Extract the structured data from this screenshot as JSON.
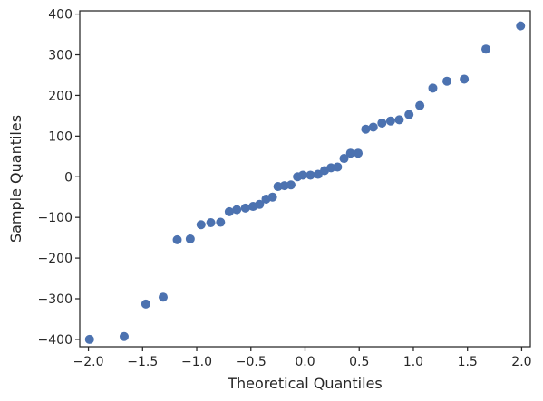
{
  "chart_data": {
    "type": "scatter",
    "title": "",
    "xlabel": "Theoretical Quantiles",
    "ylabel": "Sample Quantiles",
    "xlim": [
      -2.08,
      2.08
    ],
    "ylim": [
      -418,
      408
    ],
    "xticks": [
      -2.0,
      -1.5,
      -1.0,
      -0.5,
      0.0,
      0.5,
      1.0,
      1.5,
      2.0
    ],
    "xtick_labels": [
      "−2.0",
      "−1.5",
      "−1.0",
      "−0.5",
      "0.0",
      "0.5",
      "1.0",
      "1.5",
      "2.0"
    ],
    "yticks": [
      -400,
      -300,
      -200,
      -100,
      0,
      100,
      200,
      300,
      400
    ],
    "ytick_labels": [
      "−400",
      "−300",
      "−200",
      "−100",
      "0",
      "100",
      "200",
      "300",
      "400"
    ],
    "grid": false,
    "legend": "none",
    "marker_color": "#4c72b0",
    "points": [
      {
        "x": -1.99,
        "y": -400
      },
      {
        "x": -1.67,
        "y": -393
      },
      {
        "x": -1.47,
        "y": -313
      },
      {
        "x": -1.31,
        "y": -296
      },
      {
        "x": -1.18,
        "y": -155
      },
      {
        "x": -1.06,
        "y": -153
      },
      {
        "x": -0.96,
        "y": -118
      },
      {
        "x": -0.87,
        "y": -113
      },
      {
        "x": -0.78,
        "y": -112
      },
      {
        "x": -0.7,
        "y": -86
      },
      {
        "x": -0.63,
        "y": -81
      },
      {
        "x": -0.55,
        "y": -77
      },
      {
        "x": -0.48,
        "y": -73
      },
      {
        "x": -0.42,
        "y": -68
      },
      {
        "x": -0.36,
        "y": -55
      },
      {
        "x": -0.3,
        "y": -50
      },
      {
        "x": -0.25,
        "y": -24
      },
      {
        "x": -0.19,
        "y": -22
      },
      {
        "x": -0.13,
        "y": -20
      },
      {
        "x": -0.07,
        "y": 0
      },
      {
        "x": -0.02,
        "y": 4
      },
      {
        "x": 0.05,
        "y": 4
      },
      {
        "x": 0.12,
        "y": 6
      },
      {
        "x": 0.18,
        "y": 15
      },
      {
        "x": 0.24,
        "y": 22
      },
      {
        "x": 0.3,
        "y": 24
      },
      {
        "x": 0.36,
        "y": 45
      },
      {
        "x": 0.42,
        "y": 58
      },
      {
        "x": 0.49,
        "y": 58
      },
      {
        "x": 0.56,
        "y": 117
      },
      {
        "x": 0.63,
        "y": 122
      },
      {
        "x": 0.71,
        "y": 132
      },
      {
        "x": 0.79,
        "y": 137
      },
      {
        "x": 0.87,
        "y": 140
      },
      {
        "x": 0.96,
        "y": 153
      },
      {
        "x": 1.06,
        "y": 175
      },
      {
        "x": 1.18,
        "y": 218
      },
      {
        "x": 1.31,
        "y": 235
      },
      {
        "x": 1.47,
        "y": 240
      },
      {
        "x": 1.67,
        "y": 314
      },
      {
        "x": 1.99,
        "y": 371
      }
    ]
  }
}
